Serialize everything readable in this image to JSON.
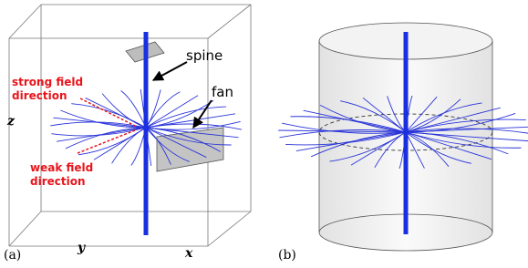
{
  "panel_a": {
    "label": "(a)",
    "spine_label": "spine",
    "fan_label": "fan",
    "strong_label": [
      "strong field",
      "direction"
    ],
    "weak_label": [
      "weak field",
      "direction"
    ],
    "axes": {
      "x": "x",
      "y": "y",
      "z": "z"
    }
  },
  "panel_b": {
    "label": "(b)"
  }
}
